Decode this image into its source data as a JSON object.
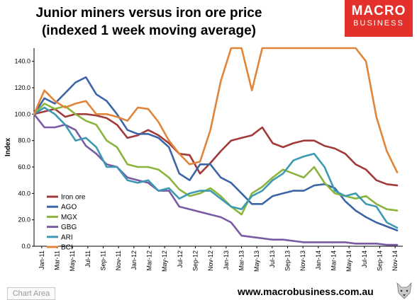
{
  "title_line1": "Junior miners versus iron ore price",
  "title_line2": "(indexed 1 week moving average)",
  "logo": {
    "line1": "MACRO",
    "line2": "BUSINESS"
  },
  "footer_url": "www.macrobusiness.com.au",
  "chart_area_label": "Chart Area",
  "chart_data": {
    "type": "line",
    "ylabel": "Index",
    "ylim": [
      0,
      150
    ],
    "yticks": [
      "0.0",
      "20.0",
      "40.0",
      "60.0",
      "80.0",
      "100.0",
      "120.0",
      "140.0"
    ],
    "x_labels": [
      "Jan-11",
      "Mar-11",
      "May-11",
      "Jul-11",
      "Sep-11",
      "Nov-11",
      "Jan-12",
      "Mar-12",
      "May-12",
      "Jul-12",
      "Sep-12",
      "Nov-12",
      "Jan-13",
      "Mar-13",
      "May-13",
      "Jul-13",
      "Sep-13",
      "Nov-13",
      "Jan-14",
      "Mar-14",
      "May-14",
      "Jul-14",
      "Sep-14",
      "Nov-14"
    ],
    "legend_position": "lower-left",
    "series": [
      {
        "name": "Iron ore",
        "color": "#a33a3a",
        "values": [
          100,
          102,
          104,
          98,
          100,
          100,
          99,
          97,
          92,
          82,
          84,
          88,
          84,
          78,
          70,
          69,
          55,
          63,
          72,
          80,
          82,
          84,
          90,
          78,
          75,
          78,
          80,
          80,
          76,
          74,
          70,
          62,
          58,
          50,
          47,
          46
        ]
      },
      {
        "name": "AGO",
        "color": "#3c65a8",
        "values": [
          100,
          112,
          108,
          116,
          124,
          128,
          115,
          110,
          100,
          88,
          85,
          85,
          82,
          75,
          55,
          50,
          62,
          62,
          52,
          48,
          40,
          32,
          32,
          38,
          40,
          42,
          42,
          46,
          47,
          44,
          34,
          27,
          22,
          18,
          15,
          12
        ]
      },
      {
        "name": "MGX",
        "color": "#8ab43c",
        "values": [
          100,
          108,
          104,
          106,
          100,
          95,
          92,
          80,
          75,
          62,
          60,
          60,
          58,
          52,
          43,
          38,
          40,
          44,
          38,
          30,
          24,
          40,
          45,
          52,
          58,
          55,
          52,
          60,
          48,
          40,
          38,
          36,
          38,
          32,
          28,
          27
        ]
      },
      {
        "name": "GBG",
        "color": "#7a5ba3",
        "values": [
          100,
          90,
          90,
          92,
          88,
          76,
          70,
          62,
          60,
          52,
          50,
          48,
          42,
          42,
          30,
          28,
          26,
          24,
          22,
          18,
          8,
          7,
          6,
          5,
          5,
          4,
          3,
          3,
          3,
          3,
          3,
          2,
          2,
          2,
          1,
          1
        ]
      },
      {
        "name": "ARI",
        "color": "#3d9ab2",
        "values": [
          100,
          105,
          100,
          92,
          80,
          82,
          75,
          60,
          60,
          50,
          48,
          50,
          42,
          44,
          36,
          40,
          42,
          42,
          36,
          30,
          28,
          38,
          42,
          50,
          55,
          65,
          68,
          70,
          60,
          42,
          38,
          40,
          32,
          30,
          18,
          14
        ]
      },
      {
        "name": "BCI",
        "color": "#e0853a",
        "values": [
          100,
          118,
          110,
          105,
          108,
          110,
          100,
          100,
          98,
          95,
          105,
          104,
          94,
          80,
          70,
          62,
          64,
          88,
          125,
          150,
          150,
          118,
          150,
          150,
          150,
          150,
          150,
          150,
          150,
          150,
          150,
          150,
          140,
          98,
          72,
          56
        ]
      }
    ]
  }
}
